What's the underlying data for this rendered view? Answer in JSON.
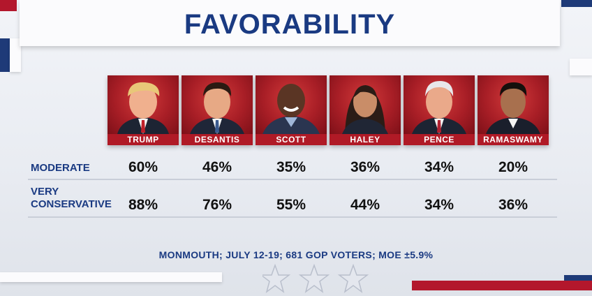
{
  "title": "FAVORABILITY",
  "candidates": [
    {
      "name": "TRUMP"
    },
    {
      "name": "DESANTIS"
    },
    {
      "name": "SCOTT"
    },
    {
      "name": "HALEY"
    },
    {
      "name": "PENCE"
    },
    {
      "name": "RAMASWAMY"
    }
  ],
  "rows": [
    {
      "label_lines": [
        "MODERATE"
      ],
      "values": [
        "60%",
        "46%",
        "35%",
        "36%",
        "34%",
        "20%"
      ]
    },
    {
      "label_lines": [
        "VERY",
        "CONSERVATIVE"
      ],
      "values": [
        "88%",
        "76%",
        "55%",
        "44%",
        "34%",
        "36%"
      ]
    }
  ],
  "source": "MONMOUTH; JULY 12-19; 681 GOP VOTERS; MOE ±5.9%",
  "colors": {
    "title_blue": "#1a3a82",
    "name_red": "#b01a26",
    "accent_red": "#b3172c",
    "accent_blue": "#1e3a78"
  },
  "icons": [
    "star-icon",
    "star-icon",
    "star-icon"
  ]
}
